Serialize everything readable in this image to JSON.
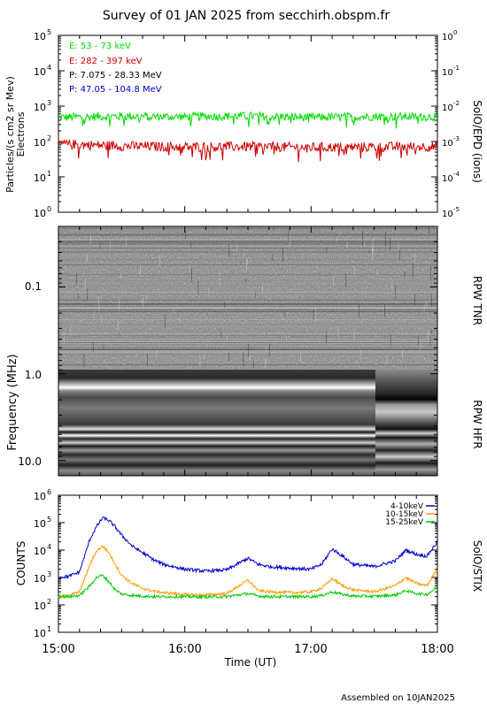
{
  "title": "Survey of 01 JAN 2025 from secchirh.obspm.fr",
  "footer": "Assembled on  10JAN2025",
  "x_axis": {
    "label": "Time (UT)",
    "ticks": [
      "15:00",
      "16:00",
      "17:00",
      "18:00"
    ]
  },
  "panels": {
    "particles": {
      "ylabel_left_1": "Particles/(s cm2 sr Mev)",
      "ylabel_left_2": "Electrons",
      "ylabel_right": "SolO/EPD (ions)",
      "left_ticks": [
        "10",
        "10",
        "10",
        "10",
        "10",
        "10"
      ],
      "left_exps": [
        "0",
        "1",
        "2",
        "3",
        "4",
        "5"
      ],
      "right_ticks": [
        "10",
        "10",
        "10",
        "10",
        "10",
        "10"
      ],
      "right_exps": [
        "-5",
        "-4",
        "-3",
        "-2",
        "-1",
        "0"
      ],
      "legend": [
        {
          "text": "E: 53 - 73 keV",
          "color": "#00dd00"
        },
        {
          "text": "E: 282 - 397 keV",
          "color": "#cc0000"
        },
        {
          "text": "P: 7.075 - 28.33 MeV",
          "color": "#000000"
        },
        {
          "text": "P: 47.05 - 104.8 MeV",
          "color": "#0000cc"
        }
      ]
    },
    "radio": {
      "ylabel": "Frequency (MHz)",
      "ticks": [
        "0.1",
        "1.0",
        "10.0"
      ],
      "label_tnr": "RPW TNR",
      "label_hfr": "RPW HFR"
    },
    "stix": {
      "ylabel": "COUNTS",
      "ylabel_right": "SolO/STIX",
      "ticks": [
        "10",
        "10",
        "10",
        "10",
        "10",
        "10"
      ],
      "exps": [
        "1",
        "2",
        "3",
        "4",
        "5",
        "6"
      ],
      "legend": [
        {
          "text": "4-10keV",
          "color": "#0000cc"
        },
        {
          "text": "10-15keV",
          "color": "#ff9900"
        },
        {
          "text": "15-25keV",
          "color": "#00cc00"
        }
      ]
    }
  },
  "chart_data": [
    {
      "type": "line",
      "title": "",
      "xlabel": "",
      "ylabel": "Particles/(s cm2 sr Mev)",
      "yscale": "log",
      "ylim": [
        1,
        100000
      ],
      "y2lim": [
        1e-05,
        1
      ],
      "x": [
        "15:00",
        "15:30",
        "16:00",
        "16:30",
        "17:00",
        "17:30",
        "18:00"
      ],
      "series": [
        {
          "name": "E: 53 - 73 keV",
          "color": "#00dd00",
          "values": [
            480,
            520,
            500,
            530,
            480,
            510,
            500
          ]
        },
        {
          "name": "E: 282 - 397 keV",
          "color": "#cc0000",
          "values": [
            85,
            75,
            70,
            72,
            68,
            70,
            72
          ]
        }
      ]
    },
    {
      "type": "heatmap",
      "title": "",
      "ylabel": "Frequency (MHz)",
      "yscale": "log",
      "ylim": [
        0.02,
        15
      ],
      "x_range": [
        "15:00",
        "18:00"
      ],
      "notes": [
        "RPW TNR",
        "RPW HFR"
      ]
    },
    {
      "type": "line",
      "title": "",
      "xlabel": "Time (UT)",
      "ylabel": "COUNTS",
      "yscale": "log",
      "ylim": [
        10,
        1000000
      ],
      "x": [
        "15:00",
        "15:05",
        "15:10",
        "15:15",
        "15:18",
        "15:21",
        "15:24",
        "15:27",
        "15:30",
        "15:35",
        "15:40",
        "15:45",
        "15:50",
        "16:00",
        "16:10",
        "16:20",
        "16:30",
        "16:35",
        "16:40",
        "16:50",
        "17:00",
        "17:05",
        "17:10",
        "17:15",
        "17:20",
        "17:30",
        "17:40",
        "17:45",
        "17:50",
        "17:55",
        "18:00"
      ],
      "series": [
        {
          "name": "4-10keV",
          "color": "#0000cc",
          "values": [
            1000,
            1100,
            1600,
            25000,
            70000,
            150000,
            120000,
            70000,
            35000,
            14000,
            8000,
            4500,
            3000,
            2000,
            1700,
            1900,
            5000,
            3000,
            2500,
            2200,
            2000,
            3000,
            11000,
            6000,
            3000,
            2500,
            4000,
            10000,
            7000,
            6000,
            20000
          ]
        },
        {
          "name": "10-15keV",
          "color": "#ff9900",
          "values": [
            200,
            220,
            300,
            3000,
            9000,
            14000,
            8000,
            3000,
            1200,
            600,
            400,
            320,
            280,
            240,
            230,
            260,
            800,
            330,
            300,
            280,
            300,
            400,
            900,
            500,
            350,
            300,
            500,
            1000,
            600,
            500,
            2000
          ]
        },
        {
          "name": "15-25keV",
          "color": "#00cc00",
          "values": [
            200,
            200,
            220,
            500,
            1000,
            1200,
            700,
            350,
            250,
            220,
            210,
            200,
            200,
            200,
            195,
            200,
            260,
            210,
            200,
            200,
            200,
            220,
            300,
            240,
            210,
            205,
            230,
            330,
            260,
            240,
            450
          ]
        }
      ]
    }
  ]
}
